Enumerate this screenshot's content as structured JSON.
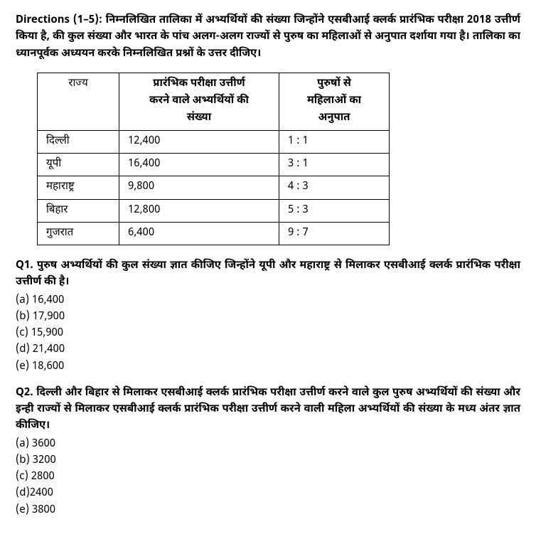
{
  "directions": {
    "label": "Directions (1–5):",
    "text": " निम्नलिखित तालिका में अभ्यर्थियों की संख्या जिन्होंने एसबीआई क्लर्क प्रारंभिक परीक्षा 2018 उत्तीर्ण किया है, की कुल संख्या और भारत के पांच अलग-अलग राज्यों से पुरुष का महिलाओं से अनुपात दर्शाया गया है। तालिका का ध्यानपूर्वक अध्ययन करके निम्नलिखित प्रश्नों के उत्तर दीजिए।"
  },
  "table": {
    "headers": {
      "state": "राज्य",
      "count_line1": "प्रारंभिक परीक्षा उत्तीर्ण",
      "count_line2": "करने वाले अभ्यर्थियों की",
      "count_line3": "संख्या",
      "ratio_line1": "पुरुषों से",
      "ratio_line2": "महिलाओं का",
      "ratio_line3": "अनुपात"
    },
    "rows": [
      {
        "state": "दिल्ली",
        "count": "12,400",
        "ratio": "1 : 1"
      },
      {
        "state": "यूपी",
        "count": "16,400",
        "ratio": "3 : 1"
      },
      {
        "state": "महाराष्ट्र",
        "count": "9,800",
        "ratio": "4 : 3"
      },
      {
        "state": "बिहार",
        "count": "12,800",
        "ratio": "5 : 3"
      },
      {
        "state": "गुजरात",
        "count": "6,400",
        "ratio": "9 : 7"
      }
    ]
  },
  "q1": {
    "label": "Q1. ",
    "text": "पुरुष अभ्यर्थियों की कुल संख्या ज्ञात कीजिए जिन्होंने यूपी और महाराष्ट्र से मिलाकर एसबीआई क्लर्क प्रारंभिक परीक्षा उत्तीर्ण की है।",
    "opts": {
      "a": "(a) 16,400",
      "b": "(b) 17,900",
      "c": "(c) 15,900",
      "d": "(d) 21,400",
      "e": "(e) 18,600"
    }
  },
  "q2": {
    "label": "Q2. ",
    "text": "दिल्ली और बिहार से मिलाकर एसबीआई क्लर्क प्रारंभिक परीक्षा उत्तीर्ण करने वाले कुल पुरुष अभ्यर्थियों की संख्या और इन्ही राज्यों से मिलाकर एसबीआई क्लर्क प्रारंभिक परीक्षा उत्तीर्ण करने वाली महिला अभ्यर्थियों की संख्या के मध्य अंतर ज्ञात कीजिए।",
    "opts": {
      "a": "(a) 3600",
      "b": "(b) 3200",
      "c": "(c) 2800",
      "d": "(d)2400",
      "e": "(e) 3800"
    }
  }
}
